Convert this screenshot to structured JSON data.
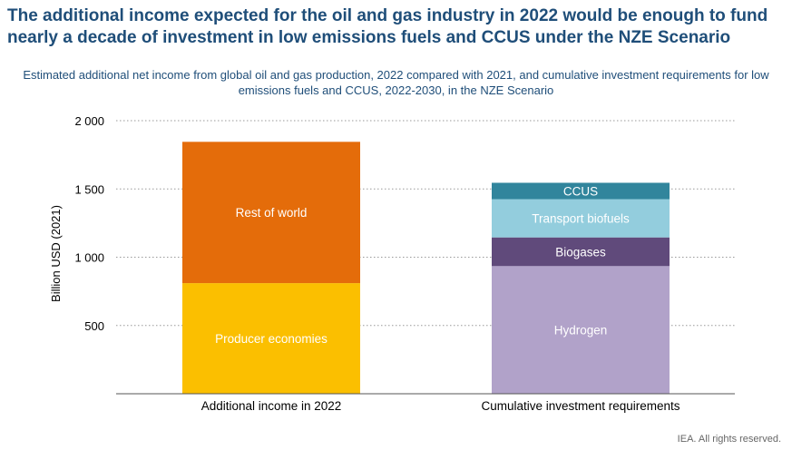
{
  "header": {
    "title": "The additional income expected for the oil and gas industry in 2022 would be enough to fund nearly a decade of investment in low emissions fuels and CCUS under the NZE Scenario",
    "subtitle": "Estimated additional net income from global oil and gas production, 2022 compared with 2021, and cumulative investment requirements for low emissions fuels and CCUS, 2022-2030, in the NZE Scenario"
  },
  "footer": {
    "credit": "IEA. All rights reserved."
  },
  "chart_data": {
    "type": "bar",
    "stacked": true,
    "categories": [
      "Additional income in 2022",
      "Cumulative investment requirements"
    ],
    "ylabel": "Billion USD (2021)",
    "ylim": [
      0,
      2000
    ],
    "yticks": [
      500,
      1000,
      1500,
      2000
    ],
    "ytick_labels": [
      "500",
      "1 000",
      "1 500",
      "2 000"
    ],
    "grid": true,
    "series": [
      {
        "name": "Producer economies",
        "values": [
          810,
          0
        ],
        "color": "#fbbf00",
        "category_index": 0
      },
      {
        "name": "Rest of world",
        "values": [
          1035,
          0
        ],
        "color": "#e46c0a",
        "category_index": 0
      },
      {
        "name": "Hydrogen",
        "values": [
          0,
          935
        ],
        "color": "#b1a2c9",
        "category_index": 1
      },
      {
        "name": "Biogases",
        "values": [
          0,
          210
        ],
        "color": "#604a7b",
        "category_index": 1
      },
      {
        "name": "Transport biofuels",
        "values": [
          0,
          280
        ],
        "color": "#93cddd",
        "category_index": 1
      },
      {
        "name": "CCUS",
        "values": [
          0,
          120
        ],
        "color": "#31859c",
        "category_index": 1
      }
    ]
  }
}
